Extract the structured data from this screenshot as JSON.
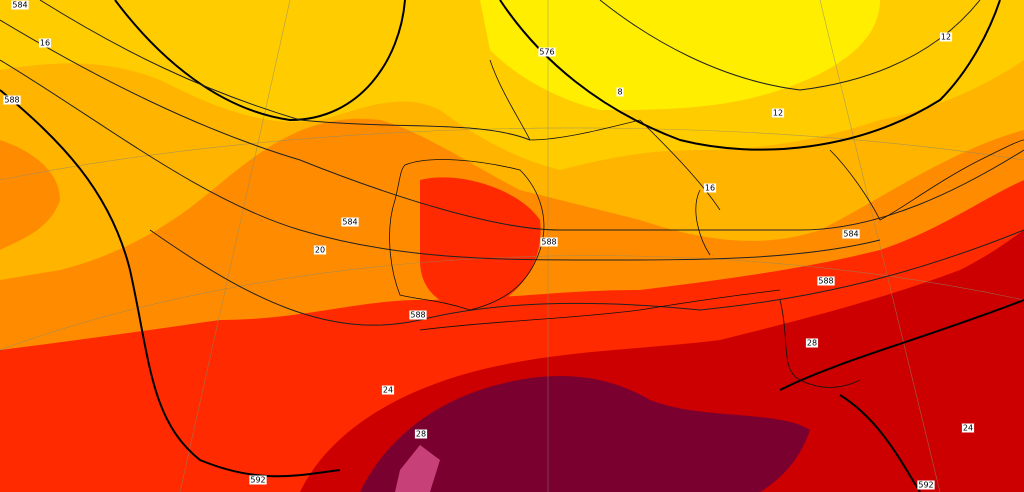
{
  "labels": [
    {
      "text": "584"
    },
    {
      "text": "588"
    },
    {
      "text": "584"
    },
    {
      "text": "584"
    },
    {
      "text": "592"
    },
    {
      "text": "592"
    },
    {
      "text": "576"
    },
    {
      "text": "588"
    },
    {
      "text": "588"
    },
    {
      "text": "588"
    },
    {
      "text": "16"
    },
    {
      "text": "20"
    },
    {
      "text": "24"
    },
    {
      "text": "28"
    },
    {
      "text": "28"
    },
    {
      "text": "24"
    },
    {
      "text": "12"
    },
    {
      "text": "12"
    },
    {
      "text": "8"
    },
    {
      "text": "16"
    }
  ]
}
